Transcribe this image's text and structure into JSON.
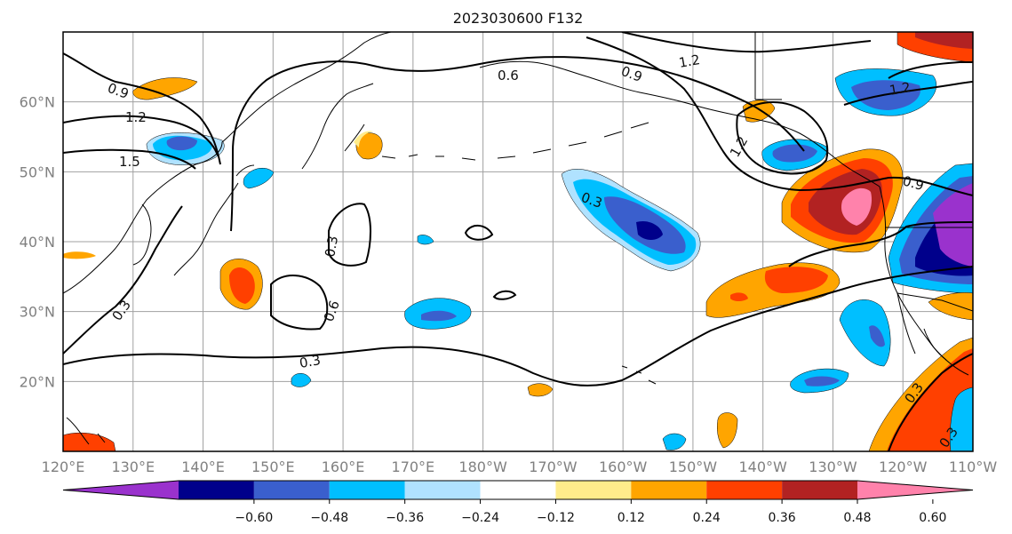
{
  "title": "2023030600 F132",
  "map": {
    "lon_labels": [
      "120°E",
      "130°E",
      "140°E",
      "150°E",
      "160°E",
      "170°E",
      "180°W",
      "170°W",
      "160°W",
      "150°W",
      "140°W",
      "130°W",
      "120°W",
      "110°W"
    ],
    "lat_labels": [
      "60°N",
      "50°N",
      "40°N",
      "30°N",
      "20°N"
    ],
    "lon_range": [
      120,
      250
    ],
    "lat_range": [
      10,
      70
    ]
  },
  "colorbar": {
    "ticks": [
      "−0.60",
      "−0.48",
      "−0.36",
      "−0.24",
      "−0.12",
      "0.12",
      "0.24",
      "0.36",
      "0.48",
      "0.60"
    ],
    "colors": [
      "#9a32cd",
      "#00008b",
      "#3a5fcd",
      "#00bfff",
      "#b0e2ff",
      "#ffffff",
      "#ffec8b",
      "#ffa500",
      "#ff4000",
      "#b22222",
      "#ff82ab"
    ]
  },
  "contour_labels": [
    "0.9",
    "1.2",
    "1.5",
    "0.6",
    "0.9",
    "1.2",
    "1.2",
    "1.2",
    "0.3",
    "0.3",
    "0.6",
    "0.3",
    "0.3",
    "0.9",
    "0.3",
    "0.3"
  ]
}
